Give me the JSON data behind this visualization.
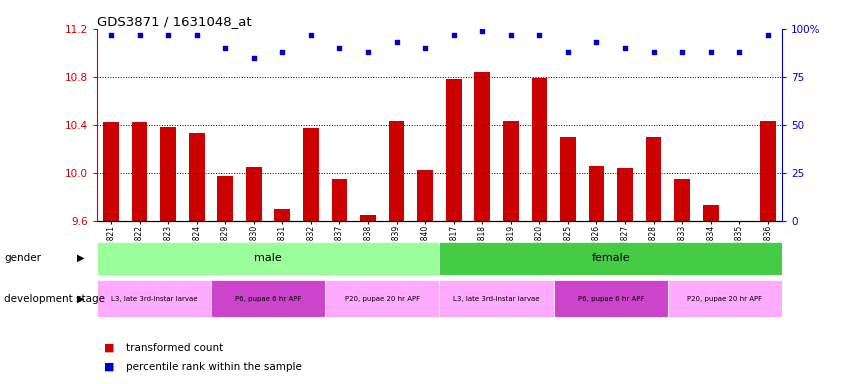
{
  "title": "GDS3871 / 1631048_at",
  "samples": [
    "GSM572821",
    "GSM572822",
    "GSM572823",
    "GSM572824",
    "GSM572829",
    "GSM572830",
    "GSM572831",
    "GSM572832",
    "GSM572837",
    "GSM572838",
    "GSM572839",
    "GSM572840",
    "GSM572817",
    "GSM572818",
    "GSM572819",
    "GSM572820",
    "GSM572825",
    "GSM572826",
    "GSM572827",
    "GSM572828",
    "GSM572833",
    "GSM572834",
    "GSM572835",
    "GSM572836"
  ],
  "bar_values": [
    10.42,
    10.42,
    10.38,
    10.33,
    9.97,
    10.05,
    9.7,
    10.37,
    9.95,
    9.65,
    10.43,
    10.02,
    10.78,
    10.84,
    10.43,
    10.79,
    10.3,
    10.06,
    10.04,
    10.3,
    9.95,
    9.73,
    9.6,
    10.43
  ],
  "dot_values": [
    97,
    97,
    97,
    97,
    90,
    85,
    88,
    97,
    90,
    88,
    93,
    90,
    97,
    99,
    97,
    97,
    88,
    93,
    90,
    88,
    88,
    88,
    88,
    97
  ],
  "bar_color": "#cc0000",
  "dot_color": "#0000cc",
  "ymin": 9.6,
  "ymax": 11.2,
  "yticks": [
    9.6,
    10.0,
    10.4,
    10.8,
    11.2
  ],
  "y2min": 0,
  "y2max": 100,
  "y2ticks": [
    0,
    25,
    50,
    75,
    100
  ],
  "y2tick_labels": [
    "0",
    "25",
    "50",
    "75",
    "100%"
  ],
  "grid_lines": [
    10.0,
    10.4,
    10.8
  ],
  "gender_male_label": "male",
  "gender_female_label": "female",
  "gender_male_color": "#99ff99",
  "gender_female_color": "#44cc44",
  "dev_stage_labels": [
    "L3, late 3rd-instar larvae",
    "P6, pupae 6 hr APF",
    "P20, pupae 20 hr APF"
  ],
  "dev_colors": [
    "#ffaaff",
    "#cc44cc",
    "#ffaaff",
    "#ffaaff",
    "#cc44cc",
    "#ffaaff"
  ],
  "dev_positions": [
    0,
    4,
    8,
    12,
    16,
    20
  ],
  "dev_widths": [
    4,
    4,
    4,
    4,
    4,
    4
  ],
  "bar_base": 9.6,
  "legend_bar_label": "transformed count",
  "legend_dot_label": "percentile rank within the sample",
  "dot_size": 12
}
